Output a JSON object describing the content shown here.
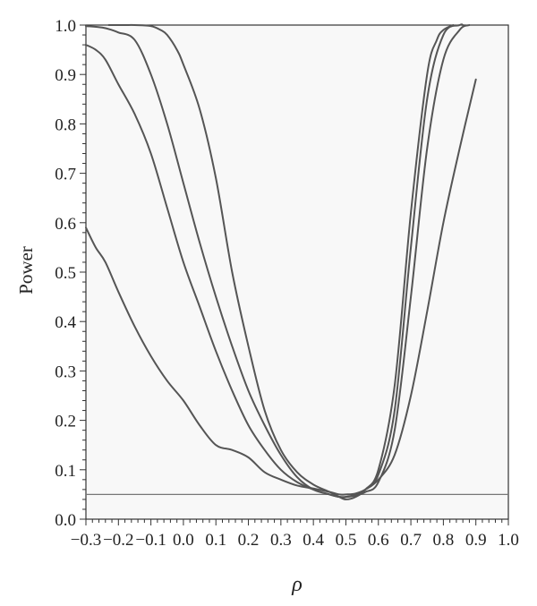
{
  "chart_data": {
    "type": "line",
    "xlabel": "ρ",
    "ylabel": "Power",
    "xlim": [
      -0.3,
      1.0
    ],
    "ylim": [
      0.0,
      1.0
    ],
    "x_ticks": [
      -0.3,
      -0.2,
      -0.1,
      0.0,
      0.1,
      0.2,
      0.3,
      0.4,
      0.5,
      0.6,
      0.7,
      0.8,
      0.9,
      1.0
    ],
    "x_tick_labels": [
      "−0.3",
      "−0.2",
      "−0.1",
      "0.0",
      "0.1",
      "0.2",
      "0.3",
      "0.4",
      "0.5",
      "0.6",
      "0.7",
      "0.8",
      "0.9",
      "1.0"
    ],
    "y_ticks": [
      0.0,
      0.1,
      0.2,
      0.3,
      0.4,
      0.5,
      0.6,
      0.7,
      0.8,
      0.9,
      1.0
    ],
    "y_tick_labels": [
      "0.0",
      "0.1",
      "0.2",
      "0.3",
      "0.4",
      "0.5",
      "0.6",
      "0.7",
      "0.8",
      "0.9",
      "1.0"
    ],
    "grid": false,
    "line_color": "#555555",
    "reference_line": {
      "y": 0.05,
      "color": "#777777"
    },
    "series": [
      {
        "x": [
          -0.3,
          -0.27,
          -0.24,
          -0.2,
          -0.15,
          -0.1,
          -0.05,
          0.0,
          0.05,
          0.1,
          0.15,
          0.2,
          0.25,
          0.3,
          0.35,
          0.4,
          0.45,
          0.48,
          0.5,
          0.53,
          0.56,
          0.6,
          0.65,
          0.7,
          0.75,
          0.8,
          0.85,
          0.9
        ],
        "y": [
          0.59,
          0.55,
          0.52,
          0.46,
          0.39,
          0.33,
          0.28,
          0.24,
          0.19,
          0.15,
          0.14,
          0.125,
          0.095,
          0.08,
          0.068,
          0.062,
          0.055,
          0.05,
          0.05,
          0.052,
          0.06,
          0.08,
          0.13,
          0.25,
          0.42,
          0.6,
          0.75,
          0.89
        ]
      },
      {
        "x": [
          -0.3,
          -0.27,
          -0.24,
          -0.2,
          -0.15,
          -0.1,
          -0.05,
          0.0,
          0.05,
          0.1,
          0.15,
          0.2,
          0.25,
          0.3,
          0.35,
          0.4,
          0.45,
          0.48,
          0.5,
          0.53,
          0.56,
          0.6,
          0.65,
          0.7,
          0.75,
          0.8,
          0.85,
          0.88
        ],
        "y": [
          0.96,
          0.95,
          0.93,
          0.88,
          0.82,
          0.74,
          0.63,
          0.52,
          0.43,
          0.34,
          0.26,
          0.19,
          0.14,
          0.1,
          0.075,
          0.06,
          0.05,
          0.045,
          0.045,
          0.048,
          0.055,
          0.075,
          0.18,
          0.45,
          0.75,
          0.93,
          0.99,
          1.0
        ]
      },
      {
        "x": [
          -0.3,
          -0.25,
          -0.22,
          -0.2,
          -0.15,
          -0.1,
          -0.05,
          0.0,
          0.05,
          0.1,
          0.15,
          0.2,
          0.25,
          0.3,
          0.35,
          0.4,
          0.45,
          0.48,
          0.5,
          0.53,
          0.56,
          0.6,
          0.65,
          0.7,
          0.75,
          0.8,
          0.85,
          0.86
        ],
        "y": [
          0.998,
          0.995,
          0.99,
          0.985,
          0.97,
          0.9,
          0.8,
          0.68,
          0.56,
          0.45,
          0.35,
          0.26,
          0.19,
          0.13,
          0.085,
          0.06,
          0.05,
          0.045,
          0.045,
          0.05,
          0.06,
          0.09,
          0.22,
          0.55,
          0.85,
          0.98,
          1.0,
          1.0
        ]
      },
      {
        "x": [
          -0.23,
          -0.18,
          -0.15,
          -0.1,
          -0.07,
          -0.05,
          -0.02,
          0.0,
          0.05,
          0.1,
          0.15,
          0.2,
          0.25,
          0.3,
          0.35,
          0.4,
          0.45,
          0.48,
          0.5,
          0.53,
          0.56,
          0.6,
          0.65,
          0.7,
          0.75,
          0.78,
          0.8,
          0.83
        ],
        "y": [
          1.0,
          1.0,
          1.0,
          0.998,
          0.99,
          0.98,
          0.95,
          0.92,
          0.83,
          0.69,
          0.5,
          0.35,
          0.22,
          0.14,
          0.095,
          0.07,
          0.055,
          0.045,
          0.04,
          0.045,
          0.06,
          0.1,
          0.27,
          0.62,
          0.9,
          0.97,
          0.99,
          1.0
        ]
      }
    ]
  }
}
